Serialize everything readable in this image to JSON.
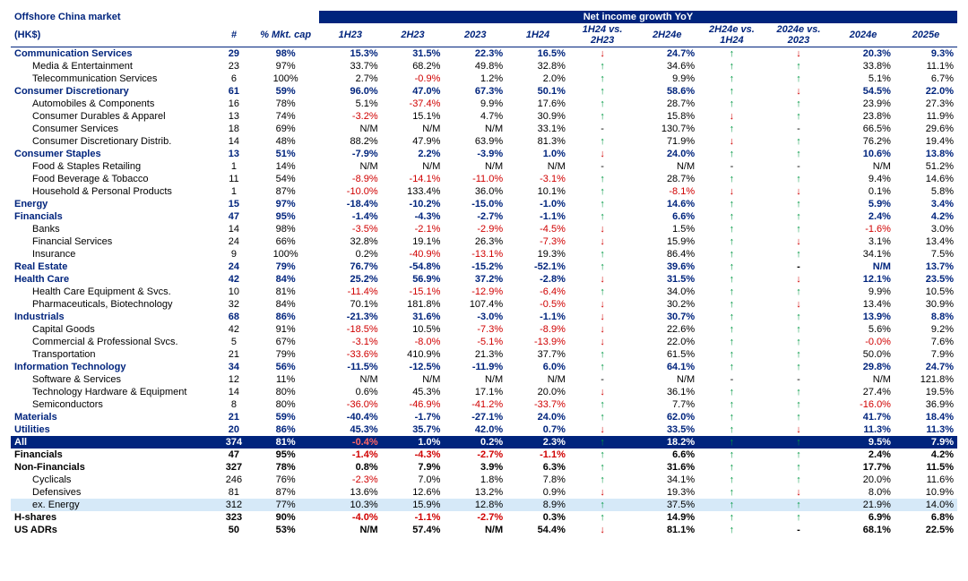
{
  "header": {
    "title_top": "Offshore China market",
    "title_sub": "(HK$)",
    "group_header": "Net income growth YoY",
    "cols": [
      "#",
      "% Mkt. cap",
      "1H23",
      "2H23",
      "2023",
      "1H24",
      "1H24 vs. 2H23",
      "2H24e",
      "2H24e vs. 1H24",
      "2024e vs. 2023",
      "2024e",
      "2025e"
    ]
  },
  "styling": {
    "navy": "#00247d",
    "lightblue": "#d6e9f8",
    "neg_color": "#d00000",
    "up_color": "#009944",
    "font_size_pt": 8,
    "font_family": "Arial"
  },
  "rows": [
    {
      "type": "sector",
      "name": "Communication Services",
      "n": "29",
      "mkt": "98%",
      "v": [
        "15.3%",
        "31.5%",
        "22.3%",
        "16.5%"
      ],
      "a1": "down",
      "v2": "24.7%",
      "a2": "up",
      "a3": "down",
      "v3": [
        "20.3%",
        "9.3%"
      ]
    },
    {
      "type": "sub",
      "name": "Media & Entertainment",
      "n": "23",
      "mkt": "97%",
      "v": [
        "33.7%",
        "68.2%",
        "49.8%",
        "32.8%"
      ],
      "a1": "up",
      "v2": "34.6%",
      "a2": "up",
      "a3": "up",
      "v3": [
        "33.8%",
        "11.1%"
      ]
    },
    {
      "type": "sub",
      "name": "Telecommunication Services",
      "n": "6",
      "mkt": "100%",
      "v": [
        "2.7%",
        "-0.9%",
        "1.2%",
        "2.0%"
      ],
      "a1": "up",
      "v2": "9.9%",
      "a2": "up",
      "a3": "up",
      "v3": [
        "5.1%",
        "6.7%"
      ]
    },
    {
      "type": "sector",
      "name": "Consumer Discretionary",
      "n": "61",
      "mkt": "59%",
      "v": [
        "96.0%",
        "47.0%",
        "67.3%",
        "50.1%"
      ],
      "a1": "up",
      "v2": "58.6%",
      "a2": "up",
      "a3": "down",
      "v3": [
        "54.5%",
        "22.0%"
      ]
    },
    {
      "type": "sub",
      "name": "Automobiles & Components",
      "n": "16",
      "mkt": "78%",
      "v": [
        "5.1%",
        "-37.4%",
        "9.9%",
        "17.6%"
      ],
      "a1": "up",
      "v2": "28.7%",
      "a2": "up",
      "a3": "up",
      "v3": [
        "23.9%",
        "27.3%"
      ]
    },
    {
      "type": "sub",
      "name": "Consumer Durables & Apparel",
      "n": "13",
      "mkt": "74%",
      "v": [
        "-3.2%",
        "15.1%",
        "4.7%",
        "30.9%"
      ],
      "a1": "up",
      "v2": "15.8%",
      "a2": "down",
      "a3": "up",
      "v3": [
        "23.8%",
        "11.9%"
      ]
    },
    {
      "type": "sub",
      "name": "Consumer Services",
      "n": "18",
      "mkt": "69%",
      "v": [
        "N/M",
        "N/M",
        "N/M",
        "33.1%"
      ],
      "a1": "dash",
      "v2": "130.7%",
      "a2": "up",
      "a3": "dash",
      "v3": [
        "66.5%",
        "29.6%"
      ]
    },
    {
      "type": "sub",
      "name": "Consumer Discretionary Distrib.",
      "n": "14",
      "mkt": "48%",
      "v": [
        "88.2%",
        "47.9%",
        "63.9%",
        "81.3%"
      ],
      "a1": "up",
      "v2": "71.9%",
      "a2": "down",
      "a3": "up",
      "v3": [
        "76.2%",
        "19.4%"
      ]
    },
    {
      "type": "sector",
      "name": "Consumer Staples",
      "n": "13",
      "mkt": "51%",
      "v": [
        "-7.9%",
        "2.2%",
        "-3.9%",
        "1.0%"
      ],
      "a1": "down",
      "v2": "24.0%",
      "a2": "up",
      "a3": "up",
      "v3": [
        "10.6%",
        "13.8%"
      ]
    },
    {
      "type": "sub",
      "name": "Food & Staples Retailing",
      "n": "1",
      "mkt": "14%",
      "v": [
        "N/M",
        "N/M",
        "N/M",
        "N/M"
      ],
      "a1": "dash",
      "v2": "N/M",
      "a2": "dash",
      "a3": "dash",
      "v3": [
        "N/M",
        "51.2%"
      ]
    },
    {
      "type": "sub",
      "name": "Food Beverage & Tobacco",
      "n": "11",
      "mkt": "54%",
      "v": [
        "-8.9%",
        "-14.1%",
        "-11.0%",
        "-3.1%"
      ],
      "a1": "up",
      "v2": "28.7%",
      "a2": "up",
      "a3": "up",
      "v3": [
        "9.4%",
        "14.6%"
      ]
    },
    {
      "type": "sub",
      "name": "Household & Personal Products",
      "n": "1",
      "mkt": "87%",
      "v": [
        "-10.0%",
        "133.4%",
        "36.0%",
        "10.1%"
      ],
      "a1": "up",
      "v2": "-8.1%",
      "a2": "down",
      "a3": "down",
      "v3": [
        "0.1%",
        "5.8%"
      ]
    },
    {
      "type": "sector",
      "name": "Energy",
      "n": "15",
      "mkt": "97%",
      "v": [
        "-18.4%",
        "-10.2%",
        "-15.0%",
        "-1.0%"
      ],
      "a1": "up",
      "v2": "14.6%",
      "a2": "up",
      "a3": "up",
      "v3": [
        "5.9%",
        "3.4%"
      ]
    },
    {
      "type": "sector",
      "name": "Financials",
      "n": "47",
      "mkt": "95%",
      "v": [
        "-1.4%",
        "-4.3%",
        "-2.7%",
        "-1.1%"
      ],
      "a1": "up",
      "v2": "6.6%",
      "a2": "up",
      "a3": "up",
      "v3": [
        "2.4%",
        "4.2%"
      ]
    },
    {
      "type": "sub",
      "name": "Banks",
      "n": "14",
      "mkt": "98%",
      "v": [
        "-3.5%",
        "-2.1%",
        "-2.9%",
        "-4.5%"
      ],
      "a1": "down",
      "v2": "1.5%",
      "a2": "up",
      "a3": "up",
      "v3": [
        "-1.6%",
        "3.0%"
      ]
    },
    {
      "type": "sub",
      "name": "Financial Services",
      "n": "24",
      "mkt": "66%",
      "v": [
        "32.8%",
        "19.1%",
        "26.3%",
        "-7.3%"
      ],
      "a1": "down",
      "v2": "15.9%",
      "a2": "up",
      "a3": "down",
      "v3": [
        "3.1%",
        "13.4%"
      ]
    },
    {
      "type": "sub",
      "name": "Insurance",
      "n": "9",
      "mkt": "100%",
      "v": [
        "0.2%",
        "-40.9%",
        "-13.1%",
        "19.3%"
      ],
      "a1": "up",
      "v2": "86.4%",
      "a2": "up",
      "a3": "up",
      "v3": [
        "34.1%",
        "7.5%"
      ]
    },
    {
      "type": "sector",
      "name": "Real Estate",
      "n": "24",
      "mkt": "79%",
      "v": [
        "76.7%",
        "-54.8%",
        "-15.2%",
        "-52.1%"
      ],
      "a1": "up",
      "v2": "39.6%",
      "a2": "up",
      "a3": "dash",
      "v3": [
        "N/M",
        "13.7%"
      ]
    },
    {
      "type": "sector",
      "name": "Health Care",
      "n": "42",
      "mkt": "84%",
      "v": [
        "25.2%",
        "56.9%",
        "37.2%",
        "-2.8%"
      ],
      "a1": "down",
      "v2": "31.5%",
      "a2": "up",
      "a3": "down",
      "v3": [
        "12.1%",
        "23.5%"
      ]
    },
    {
      "type": "sub",
      "name": "Health Care Equipment & Svcs.",
      "n": "10",
      "mkt": "81%",
      "v": [
        "-11.4%",
        "-15.1%",
        "-12.9%",
        "-6.4%"
      ],
      "a1": "up",
      "v2": "34.0%",
      "a2": "up",
      "a3": "up",
      "v3": [
        "9.9%",
        "10.5%"
      ]
    },
    {
      "type": "sub",
      "name": "Pharmaceuticals, Biotechnology",
      "n": "32",
      "mkt": "84%",
      "v": [
        "70.1%",
        "181.8%",
        "107.4%",
        "-0.5%"
      ],
      "a1": "down",
      "v2": "30.2%",
      "a2": "up",
      "a3": "down",
      "v3": [
        "13.4%",
        "30.9%"
      ]
    },
    {
      "type": "sector",
      "name": "Industrials",
      "n": "68",
      "mkt": "86%",
      "v": [
        "-21.3%",
        "31.6%",
        "-3.0%",
        "-1.1%"
      ],
      "a1": "down",
      "v2": "30.7%",
      "a2": "up",
      "a3": "up",
      "v3": [
        "13.9%",
        "8.8%"
      ]
    },
    {
      "type": "sub",
      "name": "Capital Goods",
      "n": "42",
      "mkt": "91%",
      "v": [
        "-18.5%",
        "10.5%",
        "-7.3%",
        "-8.9%"
      ],
      "a1": "down",
      "v2": "22.6%",
      "a2": "up",
      "a3": "up",
      "v3": [
        "5.6%",
        "9.2%"
      ]
    },
    {
      "type": "sub",
      "name": "Commercial & Professional Svcs.",
      "n": "5",
      "mkt": "67%",
      "v": [
        "-3.1%",
        "-8.0%",
        "-5.1%",
        "-13.9%"
      ],
      "a1": "down",
      "v2": "22.0%",
      "a2": "up",
      "a3": "up",
      "v3": [
        "-0.0%",
        "7.6%"
      ]
    },
    {
      "type": "sub",
      "name": "Transportation",
      "n": "21",
      "mkt": "79%",
      "v": [
        "-33.6%",
        "410.9%",
        "21.3%",
        "37.7%"
      ],
      "a1": "up",
      "v2": "61.5%",
      "a2": "up",
      "a3": "up",
      "v3": [
        "50.0%",
        "7.9%"
      ]
    },
    {
      "type": "sector",
      "name": "Information Technology",
      "n": "34",
      "mkt": "56%",
      "v": [
        "-11.5%",
        "-12.5%",
        "-11.9%",
        "6.0%"
      ],
      "a1": "up",
      "v2": "64.1%",
      "a2": "up",
      "a3": "up",
      "v3": [
        "29.8%",
        "24.7%"
      ]
    },
    {
      "type": "sub",
      "name": "Software & Services",
      "n": "12",
      "mkt": "11%",
      "v": [
        "N/M",
        "N/M",
        "N/M",
        "N/M"
      ],
      "a1": "dash",
      "v2": "N/M",
      "a2": "dash",
      "a3": "dash",
      "v3": [
        "N/M",
        "121.8%"
      ]
    },
    {
      "type": "sub",
      "name": "Technology Hardware & Equipment",
      "n": "14",
      "mkt": "80%",
      "v": [
        "0.6%",
        "45.3%",
        "17.1%",
        "20.0%"
      ],
      "a1": "down",
      "v2": "36.1%",
      "a2": "up",
      "a3": "up",
      "v3": [
        "27.4%",
        "19.5%"
      ]
    },
    {
      "type": "sub",
      "name": "Semiconductors",
      "n": "8",
      "mkt": "80%",
      "v": [
        "-36.0%",
        "-46.9%",
        "-41.2%",
        "-33.7%"
      ],
      "a1": "up",
      "v2": "7.7%",
      "a2": "up",
      "a3": "up",
      "v3": [
        "-16.0%",
        "36.9%"
      ]
    },
    {
      "type": "sector",
      "name": "Materials",
      "n": "21",
      "mkt": "59%",
      "v": [
        "-40.4%",
        "-1.7%",
        "-27.1%",
        "24.0%"
      ],
      "a1": "up",
      "v2": "62.0%",
      "a2": "up",
      "a3": "up",
      "v3": [
        "41.7%",
        "18.4%"
      ]
    },
    {
      "type": "sector",
      "name": "Utilities",
      "n": "20",
      "mkt": "86%",
      "v": [
        "45.3%",
        "35.7%",
        "42.0%",
        "0.7%"
      ],
      "a1": "down",
      "v2": "33.5%",
      "a2": "up",
      "a3": "down",
      "v3": [
        "11.3%",
        "11.3%"
      ]
    },
    {
      "type": "navy",
      "name": "All",
      "n": "374",
      "mkt": "81%",
      "v": [
        "-0.4%",
        "1.0%",
        "0.2%",
        "2.3%"
      ],
      "a1": "up",
      "v2": "18.2%",
      "a2": "up",
      "a3": "up",
      "v3": [
        "9.5%",
        "7.9%"
      ]
    },
    {
      "type": "bold",
      "name": "Financials",
      "n": "47",
      "mkt": "95%",
      "v": [
        "-1.4%",
        "-4.3%",
        "-2.7%",
        "-1.1%"
      ],
      "a1": "up",
      "v2": "6.6%",
      "a2": "up",
      "a3": "up",
      "v3": [
        "2.4%",
        "4.2%"
      ]
    },
    {
      "type": "bold",
      "name": "Non-Financials",
      "n": "327",
      "mkt": "78%",
      "v": [
        "0.8%",
        "7.9%",
        "3.9%",
        "6.3%"
      ],
      "a1": "up",
      "v2": "31.6%",
      "a2": "up",
      "a3": "up",
      "v3": [
        "17.7%",
        "11.5%"
      ]
    },
    {
      "type": "sub",
      "name": "Cyclicals",
      "n": "246",
      "mkt": "76%",
      "v": [
        "-2.3%",
        "7.0%",
        "1.8%",
        "7.8%"
      ],
      "a1": "up",
      "v2": "34.1%",
      "a2": "up",
      "a3": "up",
      "v3": [
        "20.0%",
        "11.6%"
      ]
    },
    {
      "type": "sub",
      "name": "Defensives",
      "n": "81",
      "mkt": "87%",
      "v": [
        "13.6%",
        "12.6%",
        "13.2%",
        "0.9%"
      ],
      "a1": "down",
      "v2": "19.3%",
      "a2": "up",
      "a3": "down",
      "v3": [
        "8.0%",
        "10.9%"
      ]
    },
    {
      "type": "sub-blue",
      "name": "ex. Energy",
      "n": "312",
      "mkt": "77%",
      "v": [
        "10.3%",
        "15.9%",
        "12.8%",
        "8.9%"
      ],
      "a1": "up",
      "v2": "37.5%",
      "a2": "up",
      "a3": "up",
      "v3": [
        "21.9%",
        "14.0%"
      ]
    },
    {
      "type": "bold",
      "name": "H-shares",
      "n": "323",
      "mkt": "90%",
      "v": [
        "-4.0%",
        "-1.1%",
        "-2.7%",
        "0.3%"
      ],
      "a1": "up",
      "v2": "14.9%",
      "a2": "up",
      "a3": "up",
      "v3": [
        "6.9%",
        "6.8%"
      ]
    },
    {
      "type": "bold",
      "name": "US ADRs",
      "n": "50",
      "mkt": "53%",
      "v": [
        "N/M",
        "57.4%",
        "N/M",
        "54.4%"
      ],
      "a1": "down",
      "v2": "81.1%",
      "a2": "up",
      "a3": "dash",
      "v3": [
        "68.1%",
        "22.5%"
      ]
    }
  ]
}
